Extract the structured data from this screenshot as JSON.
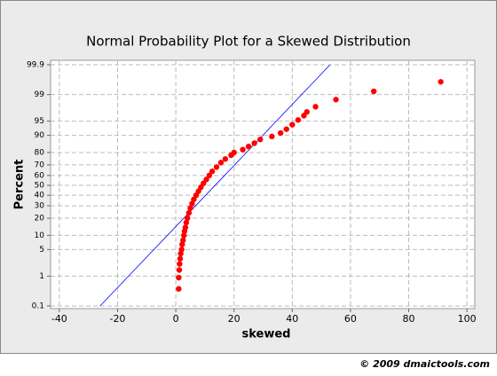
{
  "chart_data": {
    "type": "probability-plot",
    "title": "Normal Probability Plot for a Skewed Distribution",
    "x_label": "skewed",
    "y_label": "Percent",
    "footer": "© 2009 dmaictools.com",
    "y_scale": "normal-probability",
    "xlim": [
      -43,
      102.7
    ],
    "xticks": [
      -40,
      -20,
      0,
      20,
      40,
      60,
      80,
      100
    ],
    "ylim": [
      0.1,
      99.9
    ],
    "yticks": [
      0.1,
      1,
      5,
      10,
      20,
      30,
      40,
      50,
      60,
      70,
      80,
      90,
      95,
      99,
      99.9
    ],
    "grid": true,
    "series": [
      {
        "color": "#ff0000",
        "x": [
          1,
          1,
          1.2,
          1.3,
          1.5,
          1.7,
          2,
          2.2,
          2.5,
          2.8,
          3,
          3.3,
          3.6,
          4,
          4.5,
          5,
          5.6,
          6.2,
          7,
          7.8,
          8.6,
          9.5,
          10.5,
          11.5,
          12.5,
          14,
          15.5,
          17,
          19,
          20,
          23,
          25,
          27,
          29,
          33,
          36,
          38,
          40,
          42,
          44,
          45,
          48,
          55,
          68,
          91
        ],
        "values": [
          0.4,
          0.9,
          1.5,
          2.2,
          3,
          4,
          5,
          6.5,
          8,
          10,
          12,
          14,
          17,
          20,
          24,
          28,
          32,
          36,
          40,
          44,
          48,
          52,
          56,
          60,
          64,
          68,
          72,
          75,
          78,
          80,
          82,
          84,
          86,
          88,
          89.5,
          91,
          92.5,
          94,
          95.3,
          96.3,
          97,
          97.8,
          98.6,
          99.2,
          99.6
        ]
      }
    ],
    "fit_line": {
      "color": "#0000ff",
      "x": [
        -26,
        53
      ],
      "values": [
        0.1,
        99.9
      ]
    }
  }
}
